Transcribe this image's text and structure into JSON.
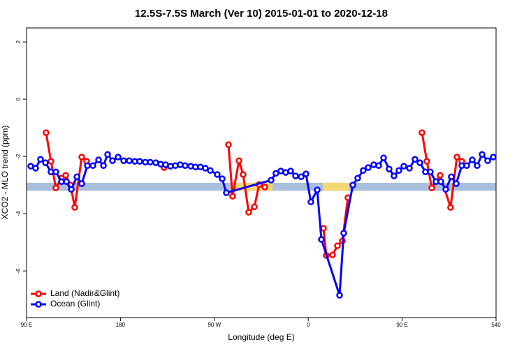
{
  "chart_data": {
    "type": "line",
    "title": "12.5S-7.5S March (Ver 10)   2015-01-01 to 2020-12-18",
    "x_label": "Longitude (deg E)",
    "y_label": "XCO2 - MLO trend (ppm)",
    "xlim": [
      90,
      540
    ],
    "ylim": [
      -7.63,
      2.49
    ],
    "xticks": [
      {
        "value": 90,
        "label": "90 E"
      },
      180,
      {
        "value": 270,
        "label": "90 W"
      },
      {
        "value": 360,
        "label": "0"
      },
      {
        "value": 450,
        "label": "90 E"
      },
      540
    ],
    "yticks": [
      -6,
      -4,
      -2,
      0,
      2
    ],
    "legend": "bottom-left",
    "band": {
      "range": [
        -3.2,
        -2.92
      ],
      "color": "#a9bfdc",
      "highlights": [
        [
          285.6,
          325.8
        ],
        [
          374,
          399.5
        ]
      ],
      "highlight_color": "#f7d774"
    },
    "series": [
      {
        "name": "Land (Nadir&Glint)",
        "color": "#ff0000",
        "x": [
          108.7,
          113.4,
          118.1,
          123.5,
          127.5,
          132.2,
          136.2,
          142.9,
          147.6,
          180,
          221.9,
          250,
          283.5,
          287.5,
          293.6,
          297.6,
          302.9,
          308.3,
          313.0,
          318.3,
          350,
          374.6,
          377.3,
          383.3,
          388.0,
          392.7,
          398.0,
          430,
          469.0,
          473.7,
          478.4,
          486.4,
          496.4,
          502.5,
          507.2
        ],
        "values": [
          -1.17,
          -2.17,
          -3.1,
          -2.76,
          -2.66,
          -3.0,
          -3.78,
          -2.02,
          -2.17,
          null,
          -2.39,
          null,
          -1.59,
          -3.39,
          -2.15,
          -2.63,
          -3.95,
          -3.76,
          -2.98,
          -3.07,
          null,
          -4.51,
          -5.46,
          -5.44,
          -5.12,
          -4.95,
          -3.44,
          null,
          -1.17,
          -2.17,
          -3.1,
          -2.66,
          -3.78,
          -2.02,
          -2.17
        ]
      },
      {
        "name": "Ocean (Glint)",
        "color": "#0000ff",
        "x": [
          94.0,
          98.7,
          103.4,
          108.1,
          113.4,
          118.1,
          123.5,
          128.2,
          132.9,
          138.3,
          142.9,
          148.3,
          153.6,
          159.0,
          163.7,
          167.7,
          172.4,
          177.7,
          183.1,
          188.4,
          193.8,
          198.5,
          203.8,
          208.5,
          213.9,
          218.6,
          223.3,
          227.9,
          232.6,
          237.3,
          242.0,
          247.4,
          252.0,
          256.7,
          261.4,
          266.1,
          272.8,
          277.5,
          281.5,
          324.4,
          329.0,
          333.7,
          338.4,
          343.1,
          347.8,
          353.2,
          357.8,
          362.5,
          368.6,
          372.6,
          390.0,
          394.0,
          402.7,
          407.4,
          412.7,
          417.4,
          422.8,
          427.5,
          432.2,
          437.5,
          442.2,
          446.9,
          451.6,
          457.0,
          462.3,
          467.0,
          472.3,
          477.0,
          482.4,
          487.1,
          491.8,
          497.1,
          501.8,
          507.2,
          511.9,
          517.2,
          521.9,
          526.6,
          532.0,
          537.3
        ],
        "values": [
          -2.34,
          -2.41,
          -2.1,
          -2.22,
          -2.54,
          -2.54,
          -2.88,
          -2.88,
          -3.15,
          -2.71,
          -2.95,
          -2.32,
          -2.32,
          -2.12,
          -2.32,
          -1.93,
          -2.15,
          -2.02,
          -2.15,
          -2.15,
          -2.17,
          -2.17,
          -2.2,
          -2.2,
          -2.22,
          -2.27,
          -2.29,
          -2.34,
          -2.32,
          -2.29,
          -2.32,
          -2.34,
          -2.37,
          -2.37,
          -2.41,
          -2.49,
          -2.63,
          -2.78,
          -3.27,
          -2.83,
          -2.59,
          -2.51,
          -2.56,
          -2.51,
          -2.68,
          -2.71,
          -2.61,
          -3.59,
          -3.17,
          -4.9,
          -6.85,
          -4.68,
          -3.0,
          -2.76,
          -2.49,
          -2.39,
          -2.29,
          -2.32,
          -2.05,
          -2.44,
          -2.68,
          -2.49,
          -2.34,
          -2.41,
          -2.1,
          -2.22,
          -2.54,
          -2.54,
          -2.88,
          -2.88,
          -3.15,
          -2.71,
          -2.95,
          -2.32,
          -2.32,
          -2.12,
          -2.32,
          -1.93,
          -2.15,
          -2.02
        ]
      }
    ]
  }
}
